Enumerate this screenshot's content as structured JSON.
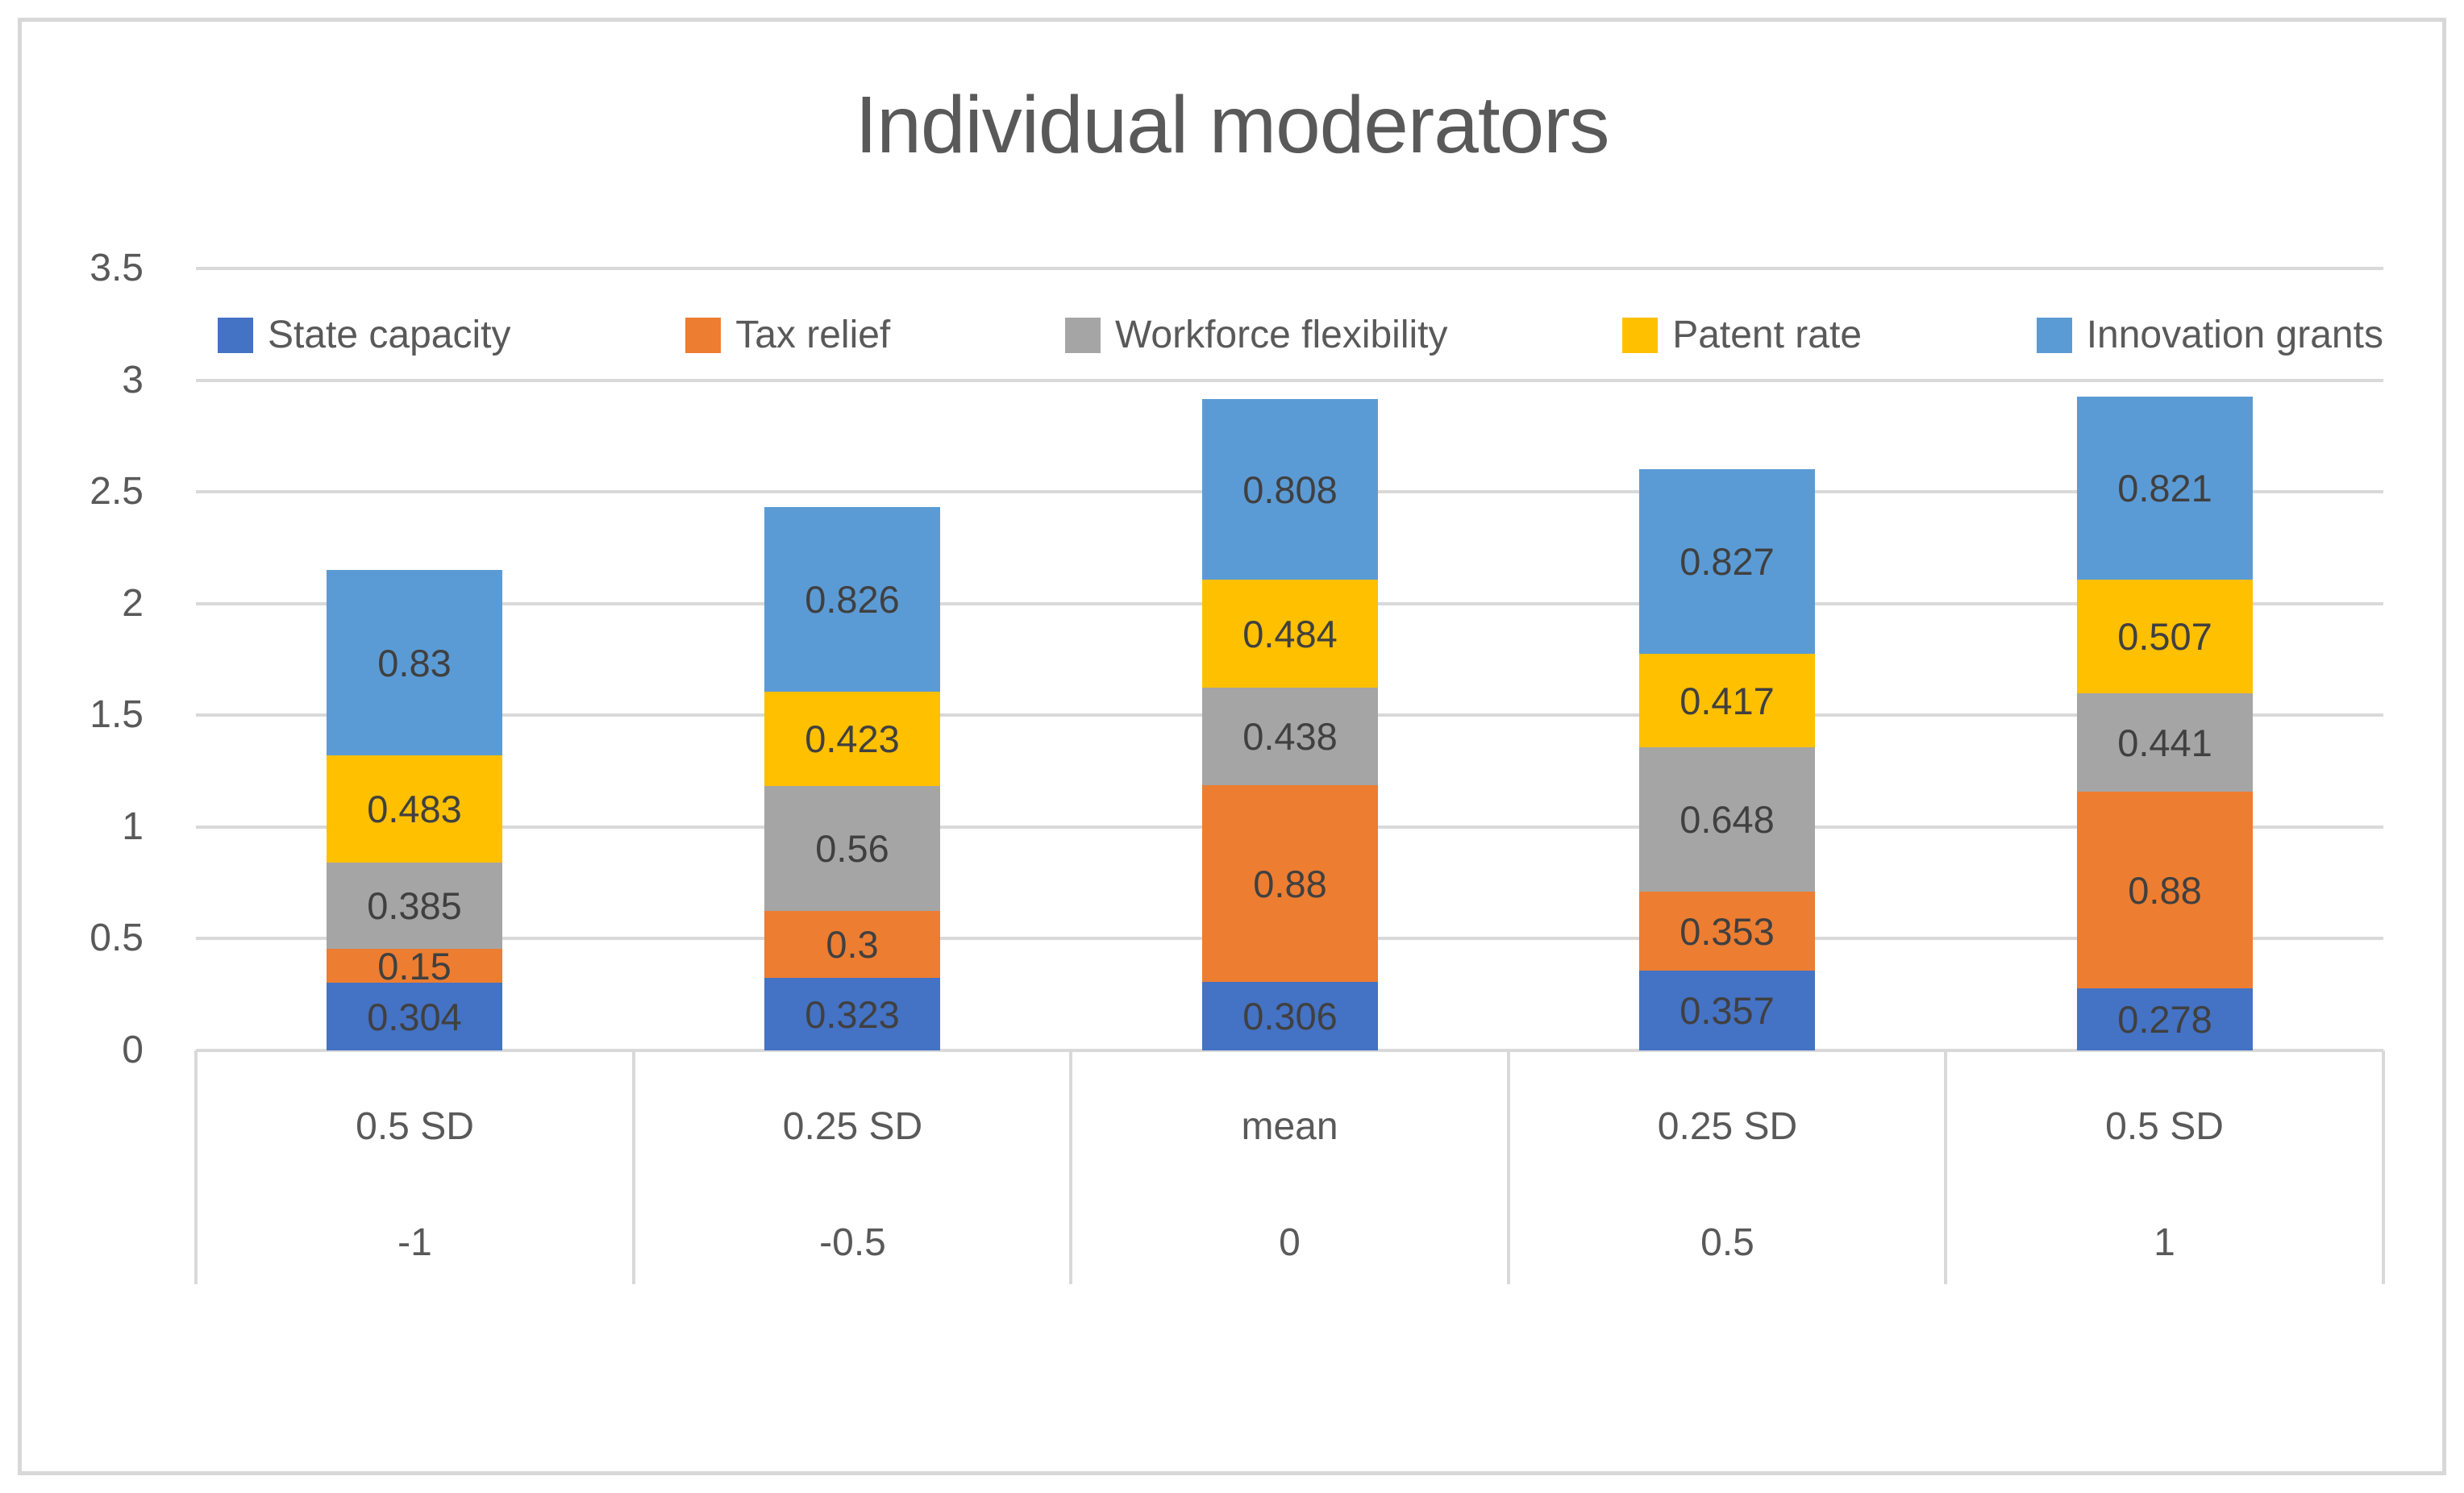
{
  "title": "Individual moderators",
  "theme": {
    "text_color": "#595959",
    "data_label_color": "#404040",
    "gridline_color": "#d9d9d9",
    "frame_border_color": "#d8d8d8",
    "background": "#ffffff"
  },
  "chart_data": {
    "type": "bar",
    "stacked": true,
    "title": "Individual moderators",
    "legend_position": "top",
    "grid": true,
    "y_axis": {
      "min": 0,
      "max": 3.5,
      "step": 0.5,
      "ticks": [
        0,
        0.5,
        1,
        1.5,
        2,
        2.5,
        3,
        3.5
      ]
    },
    "categories": [
      {
        "label": "0.5 SD",
        "sublabel": "-1"
      },
      {
        "label": "0.25 SD",
        "sublabel": "-0.5"
      },
      {
        "label": "mean",
        "sublabel": "0"
      },
      {
        "label": "0.25 SD",
        "sublabel": "0.5"
      },
      {
        "label": "0.5 SD",
        "sublabel": "1"
      }
    ],
    "series": [
      {
        "name": "State capacity",
        "color": "#4472C4",
        "values": [
          0.304,
          0.323,
          0.306,
          0.357,
          0.278
        ]
      },
      {
        "name": "Tax relief",
        "color": "#ED7D31",
        "values": [
          0.15,
          0.3,
          0.88,
          0.353,
          0.88
        ]
      },
      {
        "name": "Workforce flexibility",
        "color": "#A5A5A5",
        "values": [
          0.385,
          0.56,
          0.438,
          0.648,
          0.441
        ]
      },
      {
        "name": "Patent rate",
        "color": "#FFC000",
        "values": [
          0.483,
          0.423,
          0.484,
          0.417,
          0.507
        ]
      },
      {
        "name": "Innovation grants",
        "color": "#5B9BD5",
        "values": [
          0.83,
          0.826,
          0.808,
          0.827,
          0.821
        ]
      }
    ]
  }
}
